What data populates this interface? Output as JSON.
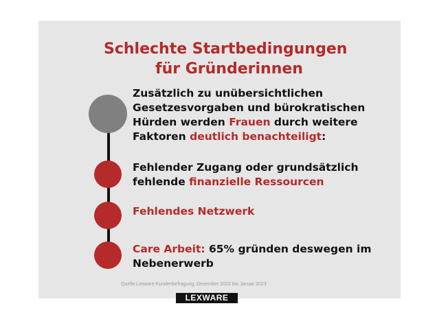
{
  "title": {
    "line1": "Schlechte Startbedingungen",
    "line2": "für Gründerinnen"
  },
  "items": [
    {
      "parts": [
        "Zusätzlich zu unübersichtlichen Gesetzesvorgaben und bürokratischen Hürden werden ",
        "Frauen",
        " durch weitere Faktoren ",
        "deutlich benachteiligt",
        ":"
      ]
    },
    {
      "parts": [
        "Fehlender Zugang oder grundsätzlich fehlende ",
        "finanzielle Ressourcen"
      ]
    },
    {
      "text": "Fehlendes Netzwerk"
    },
    {
      "parts": [
        "Care Arbeit:",
        " 65% gründen deswegen im Nebenerwerb"
      ]
    }
  ],
  "source": "Quelle:Lexware Kundenbefragung, Dezember 2022 bis Januar 2023",
  "logo": "LEXWARE",
  "colors": {
    "accent": "#b52a2a",
    "panel": "#e6e6e6",
    "grey_dot": "#808080"
  }
}
